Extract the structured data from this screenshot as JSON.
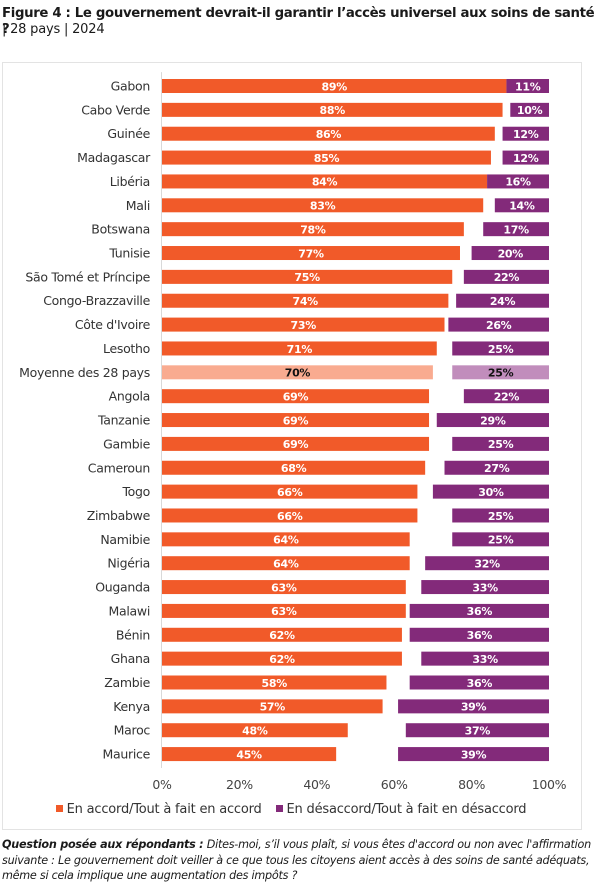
{
  "header": {
    "title": "Figure 4 : Le gouvernement devrait-il garantir l’accès universel aux soins de santé ?",
    "subtitle": "| 28 pays | 2024"
  },
  "colors": {
    "agree": "#F15A29",
    "disagree": "#832A7A",
    "agree_avg": "#F9AB90",
    "disagree_avg": "#C18DBC",
    "label_light": "#ffffff",
    "label_dark": "#111111"
  },
  "chart_data": {
    "type": "bar",
    "orientation": "horizontal",
    "stacked": "diverging-split (agree from 0%, disagree anchored at 100%)",
    "title": "Figure 4 : Le gouvernement devrait-il garantir l’accès universel aux soins de santé ?",
    "subtitle": "| 28 pays | 2024",
    "xlabel": "",
    "ylabel": "",
    "xlim": [
      0,
      100
    ],
    "x_ticks": [
      "0%",
      "20%",
      "40%",
      "60%",
      "80%",
      "100%"
    ],
    "grid": false,
    "legend_position": "bottom",
    "highlight_category": "Moyenne des 28 pays",
    "categories": [
      "Gabon",
      "Cabo Verde",
      "Guinée",
      "Madagascar",
      "Libéria",
      "Mali",
      "Botswana",
      "Tunisie",
      "São Tomé et Príncipe",
      "Congo-Brazzaville",
      "Côte d'Ivoire",
      "Lesotho",
      "Moyenne des 28 pays",
      "Angola",
      "Tanzanie",
      "Gambie",
      "Cameroun",
      "Togo",
      "Zimbabwe",
      "Namibie",
      "Nigéria",
      "Ouganda",
      "Malawi",
      "Bénin",
      "Ghana",
      "Zambie",
      "Kenya",
      "Maroc",
      "Maurice"
    ],
    "series": [
      {
        "name": "En accord/Tout à fait en accord",
        "values": [
          89,
          88,
          86,
          85,
          84,
          83,
          78,
          77,
          75,
          74,
          73,
          71,
          70,
          69,
          69,
          69,
          68,
          66,
          66,
          64,
          64,
          63,
          63,
          62,
          62,
          58,
          57,
          48,
          45
        ]
      },
      {
        "name": "En désaccord/Tout à fait en désaccord",
        "values": [
          11,
          10,
          12,
          12,
          16,
          14,
          17,
          20,
          22,
          24,
          26,
          25,
          25,
          22,
          29,
          25,
          27,
          30,
          25,
          25,
          32,
          33,
          36,
          36,
          33,
          36,
          39,
          37,
          39
        ]
      }
    ]
  },
  "legend": {
    "agree_label": "En accord/Tout à fait en accord",
    "disagree_label": "En désaccord/Tout à fait en désaccord"
  },
  "footnote": {
    "lead": "Question posée aux répondants :",
    "text": " Dites-moi, s’il vous plaît, si vous êtes d'accord ou non avec l'affirmation suivante : Le gouvernement doit veiller à ce que tous les citoyens aient accès à des soins de santé adéquats, même si cela implique une augmentation des impôts ?"
  }
}
